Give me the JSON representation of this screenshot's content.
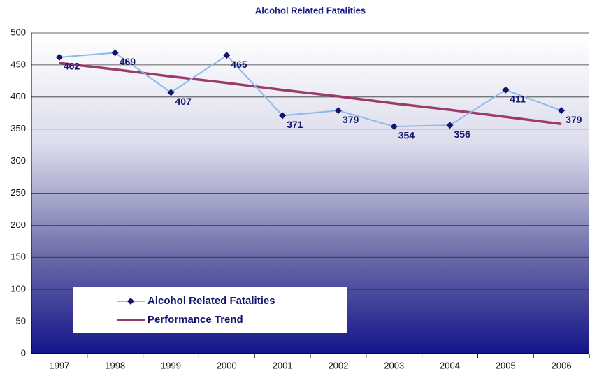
{
  "chart_data": {
    "type": "line",
    "title": "Alcohol Related Fatalities",
    "categories": [
      "1997",
      "1998",
      "1999",
      "2000",
      "2001",
      "2002",
      "2003",
      "2004",
      "2005",
      "2006"
    ],
    "series": [
      {
        "name": "Alcohol Related Fatalities",
        "color": "#8db8ea",
        "marker_color": "#14146e",
        "values": [
          462,
          469,
          407,
          465,
          371,
          379,
          354,
          356,
          411,
          379
        ],
        "data_labels": true
      },
      {
        "name": "Performance Trend",
        "color": "#9c3a6a",
        "values": [
          453,
          443,
          432,
          422,
          411,
          401,
          390,
          380,
          369,
          358
        ],
        "data_labels": false
      }
    ],
    "ylim": [
      0,
      500
    ],
    "yticks": [
      0,
      50,
      100,
      150,
      200,
      250,
      300,
      350,
      400,
      450,
      500
    ],
    "grid": true
  }
}
